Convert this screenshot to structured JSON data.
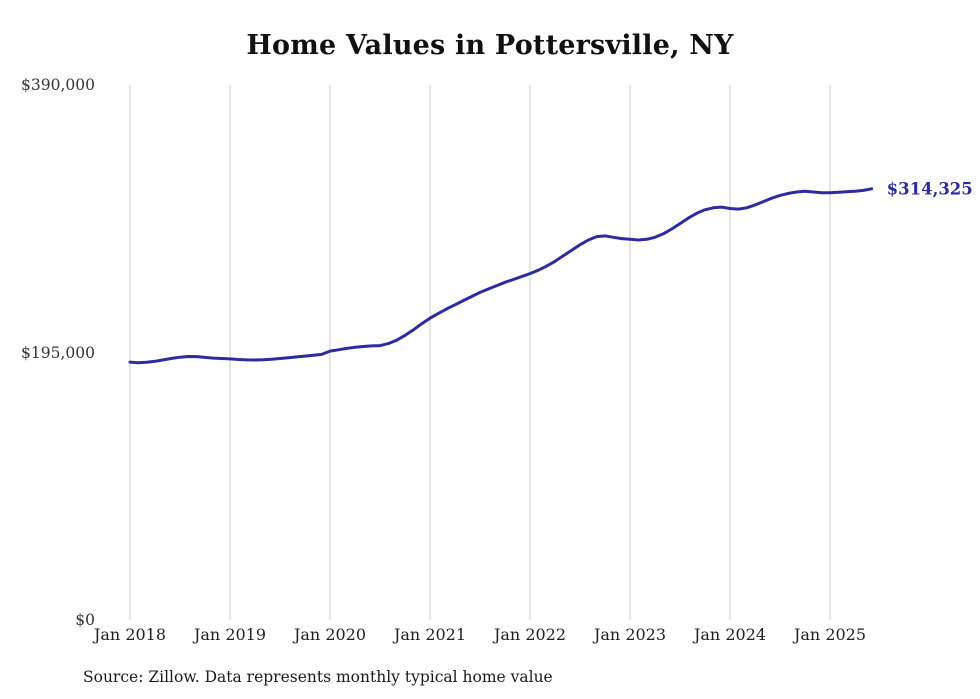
{
  "chart_data": {
    "type": "line",
    "title": "Home Values in Pottersville, NY",
    "source": "Source: Zillow. Data represents monthly typical home value",
    "end_label": "$314,325",
    "end_value": 314325,
    "grid": "vertical-only",
    "grid_color": "#cccccc",
    "ylim": [
      0,
      390000
    ],
    "y_ticks": [
      {
        "label": "$0",
        "value": 0
      },
      {
        "label": "$195,000",
        "value": 195000
      },
      {
        "label": "$390,000",
        "value": 390000
      }
    ],
    "x_ticks": [
      "Jan 2018",
      "Jan 2019",
      "Jan 2020",
      "Jan 2021",
      "Jan 2022",
      "Jan 2023",
      "Jan 2024",
      "Jan 2025"
    ],
    "series": [
      {
        "name": "Monthly typical home value",
        "color": "#2c2c9c",
        "x": [
          "2018-01",
          "2018-02",
          "2018-03",
          "2018-04",
          "2018-05",
          "2018-06",
          "2018-07",
          "2018-08",
          "2018-09",
          "2018-10",
          "2018-11",
          "2018-12",
          "2019-01",
          "2019-02",
          "2019-03",
          "2019-04",
          "2019-05",
          "2019-06",
          "2019-07",
          "2019-08",
          "2019-09",
          "2019-10",
          "2019-11",
          "2019-12",
          "2020-01",
          "2020-02",
          "2020-03",
          "2020-04",
          "2020-05",
          "2020-06",
          "2020-07",
          "2020-08",
          "2020-09",
          "2020-10",
          "2020-11",
          "2020-12",
          "2021-01",
          "2021-02",
          "2021-03",
          "2021-04",
          "2021-05",
          "2021-06",
          "2021-07",
          "2021-08",
          "2021-09",
          "2021-10",
          "2021-11",
          "2021-12",
          "2022-01",
          "2022-02",
          "2022-03",
          "2022-04",
          "2022-05",
          "2022-06",
          "2022-07",
          "2022-08",
          "2022-09",
          "2022-10",
          "2022-11",
          "2022-12",
          "2023-01",
          "2023-02",
          "2023-03",
          "2023-04",
          "2023-05",
          "2023-06",
          "2023-07",
          "2023-08",
          "2023-09",
          "2023-10",
          "2023-11",
          "2023-12",
          "2024-01",
          "2024-02",
          "2024-03",
          "2024-04",
          "2024-05",
          "2024-06",
          "2024-07",
          "2024-08",
          "2024-09",
          "2024-10",
          "2024-11",
          "2024-12",
          "2025-01",
          "2025-02",
          "2025-03",
          "2025-04",
          "2025-05",
          "2025-06"
        ],
        "values": [
          188000,
          187600,
          187900,
          188600,
          189600,
          190700,
          191600,
          192100,
          192000,
          191400,
          190900,
          190600,
          190300,
          189900,
          189600,
          189500,
          189700,
          190100,
          190600,
          191200,
          191800,
          192400,
          193000,
          193600,
          196000,
          197000,
          198000,
          198800,
          199400,
          199800,
          200000,
          201500,
          204000,
          207500,
          211500,
          216000,
          220000,
          223500,
          226800,
          229800,
          232800,
          235800,
          238800,
          241300,
          243800,
          246200,
          248200,
          250300,
          252500,
          255000,
          258000,
          261500,
          265500,
          269500,
          273500,
          277000,
          279500,
          280000,
          279000,
          278000,
          277500,
          277000,
          277500,
          279000,
          281500,
          285000,
          289000,
          293000,
          296500,
          299000,
          300500,
          301000,
          300000,
          299500,
          300500,
          302500,
          305000,
          307500,
          309500,
          311000,
          312000,
          312500,
          312000,
          311500,
          311500,
          311800,
          312200,
          312600,
          313200,
          314325
        ]
      }
    ]
  }
}
